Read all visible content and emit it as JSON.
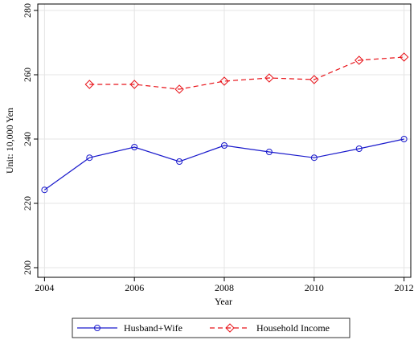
{
  "chart_data": {
    "type": "line",
    "x_label": "Year",
    "y_label": "Unit: 10,000 Yen",
    "x": [
      2004,
      2005,
      2006,
      2007,
      2008,
      2009,
      2010,
      2011,
      2012
    ],
    "series": [
      {
        "name": "Husband+Wife",
        "color": "#1a1acc",
        "marker": "circle",
        "dash": "solid",
        "values": [
          224.2,
          234.2,
          237.5,
          233,
          238,
          236,
          234.2,
          237,
          240
        ]
      },
      {
        "name": "Household Income",
        "color": "#e8141a",
        "marker": "diamond",
        "dash": "dashed",
        "values": [
          null,
          257,
          257,
          255.5,
          258,
          259,
          258.5,
          264.5,
          265.5
        ]
      }
    ],
    "xlim": [
      2003.85,
      2012.15
    ],
    "xticks": [
      2004,
      2006,
      2008,
      2010,
      2012
    ],
    "ylim": [
      197,
      282
    ],
    "yticks": [
      200,
      220,
      240,
      260,
      280
    ],
    "grid": true,
    "legend": "bottom"
  }
}
